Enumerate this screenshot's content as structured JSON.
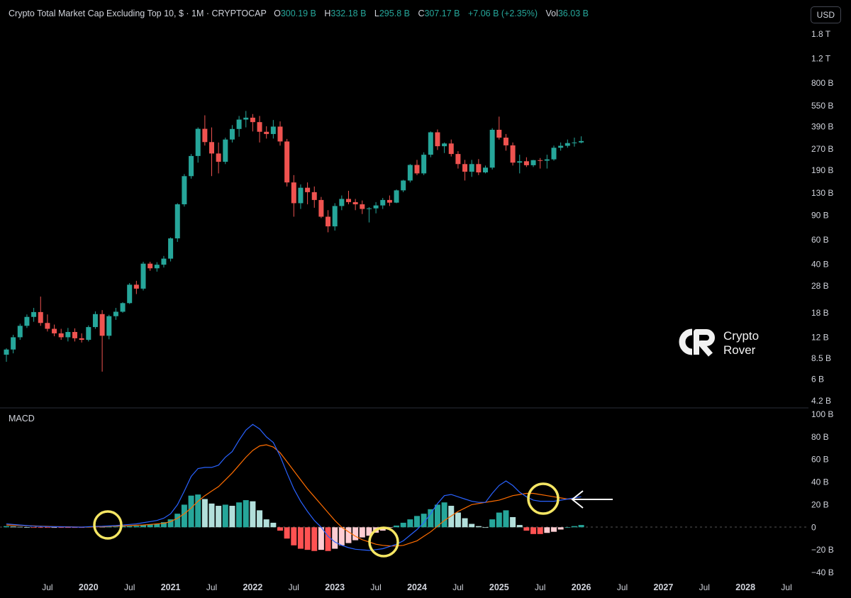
{
  "header": {
    "title": "Crypto Total Market Cap Excluding Top 10, $ · 1M · CRYPTOCAP",
    "open_label": "O",
    "open": "300.19 B",
    "high_label": "H",
    "high": "332.18 B",
    "low_label": "L",
    "low": "295.8 B",
    "close_label": "C",
    "close": "307.17 B",
    "change": "+7.06 B (+2.35%)",
    "vol_label": "Vol",
    "vol": "36.03 B"
  },
  "currency_button": "USD",
  "macd_label": "MACD",
  "logo": {
    "line1": "Crypto",
    "line2": "Rover",
    "icon": "crypto-rover-logo-icon"
  },
  "colors": {
    "up": "#26a69a",
    "down": "#ef5350",
    "macd_line": "#2962ff",
    "signal_line": "#ff6d00",
    "hist_up_strong": "#26a69a",
    "hist_up_weak": "#b2dfdb",
    "hist_down_strong": "#ff5252",
    "hist_down_weak": "#ffcdd2",
    "highlight_circle": "#f5e663",
    "arrow": "#ffffff"
  },
  "chart_data": [
    {
      "type": "candlestick",
      "title": "Crypto Total Market Cap Excluding Top 10, $ · 1M · CRYPTOCAP",
      "scale": "log",
      "y_tick_labels": [
        "1.8 T",
        "1.2 T",
        "800 B",
        "550 B",
        "390 B",
        "270 B",
        "190 B",
        "130 B",
        "90 B",
        "60 B",
        "40 B",
        "28 B",
        "18 B",
        "12 B",
        "8.5 B",
        "6 B",
        "4.2 B"
      ],
      "y_tick_values": [
        1800,
        1200,
        800,
        550,
        390,
        270,
        190,
        130,
        90,
        60,
        40,
        28,
        18,
        12,
        8.5,
        6,
        4.2
      ],
      "ylim": [
        4.2,
        1800
      ],
      "units": "B",
      "x_tick_labels": [
        "Jul",
        "2020",
        "Jul",
        "2021",
        "Jul",
        "2022",
        "Jul",
        "2023",
        "Jul",
        "2024",
        "Jul",
        "2025",
        "Jul",
        "2026",
        "Jul",
        "2027",
        "Jul",
        "2028",
        "Jul"
      ],
      "start": "2019-01",
      "candles": [
        [
          9,
          10,
          8,
          9.8
        ],
        [
          9.8,
          12.5,
          9.2,
          12
        ],
        [
          12,
          15,
          11.5,
          14.5
        ],
        [
          14.5,
          17.5,
          14,
          16.8
        ],
        [
          16.8,
          19.5,
          15.5,
          18.2
        ],
        [
          18.2,
          23.5,
          14.5,
          15.2
        ],
        [
          15.2,
          17.5,
          13.2,
          13.8
        ],
        [
          13.8,
          14.8,
          12.2,
          12.8
        ],
        [
          12.8,
          13.8,
          11.5,
          12
        ],
        [
          12,
          14,
          11.2,
          13.1
        ],
        [
          13.1,
          13.9,
          11.2,
          11.8
        ],
        [
          11.8,
          12.8,
          11,
          11.5
        ],
        [
          11.5,
          14.6,
          11.2,
          14.2
        ],
        [
          14.2,
          18.4,
          13.8,
          17.6
        ],
        [
          17.6,
          18.8,
          6.8,
          12.3
        ],
        [
          12.3,
          17.4,
          11.6,
          17
        ],
        [
          17,
          19.5,
          16,
          18.3
        ],
        [
          18.3,
          21.4,
          18,
          21.1
        ],
        [
          21.1,
          29.4,
          20.8,
          28.6
        ],
        [
          28.6,
          30.5,
          24.5,
          26.8
        ],
        [
          26.8,
          41.8,
          26,
          40.5
        ],
        [
          40.5,
          41.8,
          36,
          37.5
        ],
        [
          37.5,
          41.5,
          35.5,
          39.8
        ],
        [
          39.8,
          46,
          38,
          44
        ],
        [
          44,
          62.5,
          42,
          61.5
        ],
        [
          61.5,
          110,
          58,
          108
        ],
        [
          108,
          178,
          104,
          172
        ],
        [
          172,
          248,
          165,
          240
        ],
        [
          240,
          385,
          215,
          376
        ],
        [
          376,
          470,
          285,
          302
        ],
        [
          302,
          385,
          172,
          250
        ],
        [
          250,
          300,
          180,
          218
        ],
        [
          218,
          325,
          210,
          315
        ],
        [
          315,
          400,
          300,
          375
        ],
        [
          375,
          465,
          330,
          438
        ],
        [
          438,
          505,
          385,
          452
        ],
        [
          452,
          480,
          360,
          420
        ],
        [
          420,
          465,
          300,
          358
        ],
        [
          358,
          392,
          320,
          345
        ],
        [
          345,
          435,
          320,
          390
        ],
        [
          390,
          425,
          285,
          305
        ],
        [
          305,
          318,
          145,
          155
        ],
        [
          155,
          175,
          88,
          110
        ],
        [
          110,
          150,
          100,
          142
        ],
        [
          142,
          155,
          108,
          132
        ],
        [
          132,
          145,
          102,
          116
        ],
        [
          116,
          122,
          86,
          88
        ],
        [
          88,
          98,
          68,
          75
        ],
        [
          75,
          110,
          70,
          105
        ],
        [
          105,
          125,
          98,
          118
        ],
        [
          118,
          135,
          108,
          112
        ],
        [
          112,
          118,
          98,
          108
        ],
        [
          108,
          115,
          92,
          100
        ],
        [
          100,
          103,
          80,
          101
        ],
        [
          101,
          112,
          93,
          106
        ],
        [
          106,
          120,
          100,
          116
        ],
        [
          116,
          125,
          105,
          111
        ],
        [
          111,
          138,
          110,
          136
        ],
        [
          136,
          162,
          132,
          160
        ],
        [
          160,
          210,
          155,
          207
        ],
        [
          207,
          225,
          175,
          180
        ],
        [
          180,
          255,
          175,
          245
        ],
        [
          245,
          360,
          235,
          355
        ],
        [
          355,
          372,
          265,
          282
        ],
        [
          282,
          300,
          252,
          295
        ],
        [
          295,
          315,
          238,
          248
        ],
        [
          248,
          260,
          195,
          210
        ],
        [
          210,
          225,
          160,
          185
        ],
        [
          185,
          225,
          170,
          210
        ],
        [
          210,
          228,
          175,
          183
        ],
        [
          183,
          205,
          180,
          198
        ],
        [
          198,
          380,
          192,
          370
        ],
        [
          370,
          460,
          315,
          325
        ],
        [
          325,
          345,
          262,
          286
        ],
        [
          286,
          300,
          205,
          215
        ],
        [
          215,
          245,
          180,
          220
        ],
        [
          220,
          235,
          200,
          206
        ],
        [
          206,
          225,
          200,
          224
        ],
        [
          224,
          232,
          195,
          222
        ],
        [
          222,
          245,
          195,
          227
        ],
        [
          227,
          285,
          222,
          275
        ],
        [
          275,
          300,
          262,
          284
        ],
        [
          284,
          315,
          275,
          297
        ],
        [
          297,
          325,
          280,
          300
        ],
        [
          300.19,
          332.18,
          295.8,
          307.17
        ]
      ]
    },
    {
      "type": "line",
      "title": "MACD",
      "y_tick_labels": [
        "100 B",
        "80 B",
        "60 B",
        "40 B",
        "20 B",
        "0",
        "−20 B",
        "−40 B"
      ],
      "y_tick_values": [
        100,
        80,
        60,
        40,
        20,
        0,
        -20,
        -40
      ],
      "ylim": [
        -45,
        105
      ],
      "units": "B",
      "macd": [
        3,
        2.5,
        2,
        1.5,
        1,
        0.8,
        0.6,
        0.5,
        0.4,
        0.3,
        0.2,
        0.1,
        0.5,
        0.8,
        0.9,
        1.2,
        1.5,
        2,
        2.5,
        3,
        4,
        5,
        6,
        8,
        12,
        20,
        32,
        45,
        52,
        53,
        53,
        55,
        62,
        67,
        77,
        86,
        91,
        87,
        80,
        75,
        63,
        48,
        34,
        23,
        14,
        6,
        0,
        -8,
        -13,
        -16,
        -18,
        -19.5,
        -20,
        -20.5,
        -19.8,
        -19,
        -17,
        -15,
        -12,
        -7,
        -2,
        4,
        12,
        21,
        28,
        29,
        27,
        25,
        23,
        22,
        22,
        30,
        37,
        41,
        37,
        31,
        27,
        24,
        23,
        23,
        23,
        24,
        25,
        26,
        27
      ],
      "signal": [
        2,
        1.8,
        1.6,
        1.4,
        1.2,
        1,
        0.8,
        0.6,
        0.5,
        0.4,
        0.3,
        0.2,
        0.2,
        0.3,
        0.5,
        0.8,
        1,
        1.2,
        1.5,
        1.8,
        2,
        2.5,
        3,
        3.5,
        5,
        8,
        12,
        17,
        23,
        28,
        32,
        36,
        42,
        48,
        55,
        62,
        68,
        72,
        73,
        71,
        66,
        58,
        50,
        42,
        34,
        27,
        20,
        13,
        6,
        0,
        -4,
        -8,
        -11,
        -13,
        -15,
        -16,
        -16.5,
        -16.5,
        -16,
        -14,
        -12,
        -8,
        -4,
        1,
        6,
        10,
        14,
        17,
        20,
        21,
        22,
        23,
        24,
        26,
        28,
        29,
        30,
        30,
        29,
        28,
        27,
        26,
        25,
        25,
        25
      ],
      "histogram": [
        1,
        0.7,
        0.4,
        0.1,
        -0.2,
        -0.2,
        -0.2,
        -0.1,
        -0.1,
        -0.1,
        -0.1,
        -0.1,
        0.3,
        0.5,
        0.4,
        0.4,
        0.5,
        0.8,
        1,
        1.2,
        2,
        2.5,
        3,
        4.5,
        7,
        12,
        20,
        28,
        29,
        25,
        21,
        19,
        20,
        19,
        22,
        24,
        23,
        15,
        7,
        4,
        -3,
        -10,
        -16,
        -19,
        -20,
        -21,
        -20,
        -21,
        -19,
        -16,
        -14,
        -11.5,
        -9,
        -7.5,
        -4.8,
        -3,
        -0.5,
        1.5,
        4,
        7,
        10,
        12,
        16,
        20,
        22,
        19,
        13,
        8,
        3,
        1,
        0,
        7,
        13,
        15,
        9,
        2,
        -3,
        -6,
        -6,
        -5,
        -4,
        -2,
        0,
        1,
        2
      ]
    }
  ],
  "annotations": {
    "circles": [
      "highlight-circle-2020",
      "highlight-circle-2023",
      "highlight-circle-2025"
    ],
    "arrow": "arrow-left-icon"
  }
}
